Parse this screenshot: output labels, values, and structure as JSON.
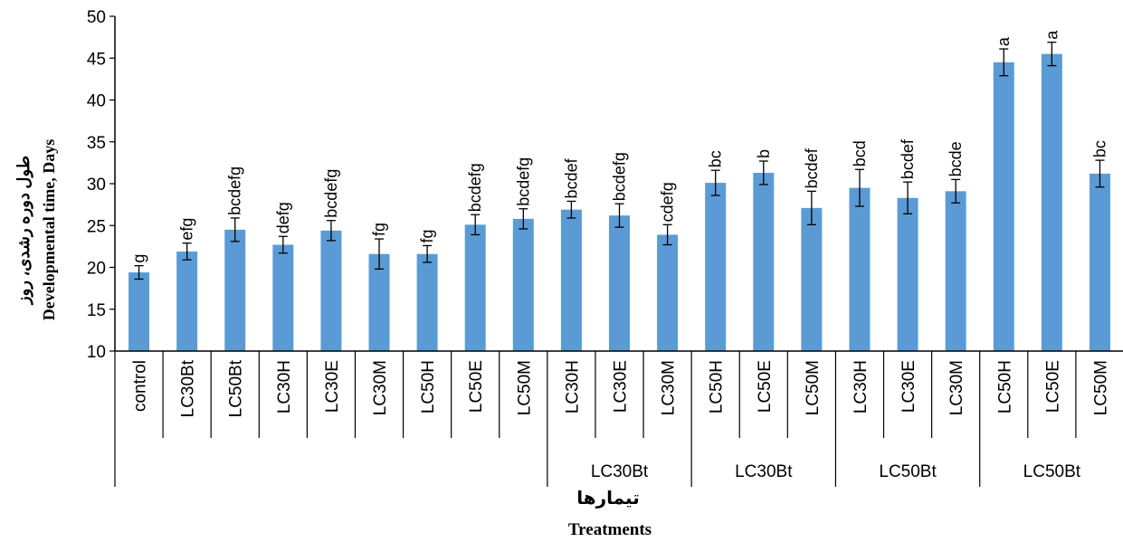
{
  "chart_data": {
    "type": "bar",
    "ylabel_fa": "طول دوره رشدی، روز",
    "ylabel_en": "Developmental time, Days",
    "xlabel_fa": "تیمارها",
    "xlabel_en": "Treatments",
    "ylim": [
      10,
      50
    ],
    "yticks": [
      10,
      15,
      20,
      25,
      30,
      35,
      40,
      45,
      50
    ],
    "bar_color": "#5b9bd5",
    "categories": [
      "control",
      "LC30Bt",
      "LC50Bt",
      "LC30H",
      "LC30E",
      "LC30M",
      "LC50H",
      "LC50E",
      "LC50M",
      "LC30H",
      "LC30E",
      "LC30M",
      "LC50H",
      "LC50E",
      "LC50M",
      "LC30H",
      "LC30E",
      "LC30M",
      "LC50H",
      "LC50E",
      "LC50M"
    ],
    "values": [
      19.4,
      21.9,
      24.5,
      22.7,
      24.4,
      21.6,
      21.6,
      25.1,
      25.8,
      26.9,
      26.2,
      23.9,
      30.1,
      31.3,
      27.1,
      29.5,
      28.3,
      29.1,
      44.5,
      45.5,
      31.2
    ],
    "errors": [
      0.8,
      1.0,
      1.4,
      1.0,
      1.2,
      1.8,
      1.0,
      1.2,
      1.2,
      1.0,
      1.4,
      1.2,
      1.5,
      1.4,
      2.0,
      2.2,
      1.9,
      1.4,
      1.6,
      1.4,
      1.6
    ],
    "letters": [
      "g",
      "efg",
      "bcdefg",
      "defg",
      "bcdefg",
      "fg",
      "fg",
      "bcdefg",
      "bcdefg",
      "bcdef",
      "bcdefg",
      "cdefg",
      "bc",
      "b",
      "bcdef",
      "bcd",
      "bcdef",
      "bcde",
      "a",
      "a",
      "bc"
    ],
    "groups": [
      {
        "label": "",
        "from": 0,
        "to": 8
      },
      {
        "label": "LC30Bt",
        "from": 9,
        "to": 11
      },
      {
        "label": "LC30Bt",
        "from": 12,
        "to": 14
      },
      {
        "label": "LC50Bt",
        "from": 15,
        "to": 17
      },
      {
        "label": "LC50Bt",
        "from": 18,
        "to": 20
      }
    ]
  }
}
